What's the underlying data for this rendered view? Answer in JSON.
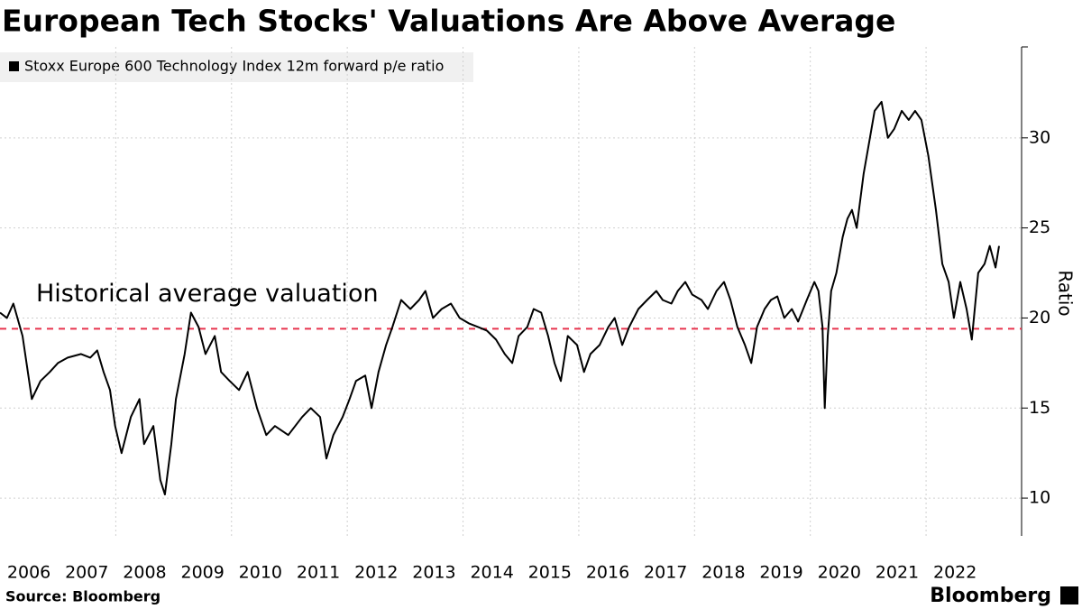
{
  "chart_data": {
    "type": "line",
    "title": "European Tech Stocks' Valuations Are Above Average",
    "y_label": "Ratio",
    "source": "Source: Bloomberg",
    "brand": "Bloomberg",
    "x": [
      2006.0,
      2006.12,
      2006.23,
      2006.39,
      2006.55,
      2006.7,
      2006.86,
      2007.0,
      2007.17,
      2007.4,
      2007.56,
      2007.68,
      2007.79,
      2007.9,
      2007.99,
      2008.1,
      2008.26,
      2008.41,
      2008.49,
      2008.65,
      2008.77,
      2008.85,
      2008.96,
      2009.04,
      2009.19,
      2009.3,
      2009.43,
      2009.55,
      2009.71,
      2009.82,
      2009.97,
      2010.13,
      2010.28,
      2010.44,
      2010.6,
      2010.75,
      2010.98,
      2011.22,
      2011.37,
      2011.53,
      2011.64,
      2011.76,
      2011.92,
      2012.04,
      2012.15,
      2012.31,
      2012.42,
      2012.54,
      2012.67,
      2012.78,
      2012.93,
      2013.09,
      2013.24,
      2013.35,
      2013.48,
      2013.63,
      2013.79,
      2013.94,
      2014.1,
      2014.26,
      2014.41,
      2014.57,
      2014.72,
      2014.85,
      2014.96,
      2015.11,
      2015.22,
      2015.35,
      2015.47,
      2015.58,
      2015.69,
      2015.81,
      2015.97,
      2016.09,
      2016.2,
      2016.36,
      2016.51,
      2016.62,
      2016.75,
      2016.87,
      2017.03,
      2017.18,
      2017.34,
      2017.45,
      2017.6,
      2017.71,
      2017.84,
      2017.96,
      2018.12,
      2018.23,
      2018.38,
      2018.51,
      2018.62,
      2018.74,
      2018.87,
      2018.98,
      2019.08,
      2019.21,
      2019.32,
      2019.43,
      2019.55,
      2019.68,
      2019.79,
      2019.94,
      2020.07,
      2020.14,
      2020.21,
      2020.25,
      2020.3,
      2020.36,
      2020.45,
      2020.56,
      2020.64,
      2020.72,
      2020.8,
      2020.92,
      2021.03,
      2021.11,
      2021.23,
      2021.34,
      2021.45,
      2021.58,
      2021.7,
      2021.81,
      2021.92,
      2022.04,
      2022.17,
      2022.28,
      2022.39,
      2022.48,
      2022.59,
      2022.7,
      2022.79,
      2022.9,
      2023.01,
      2023.1,
      2023.2,
      2023.26
    ],
    "series": [
      {
        "name": "Stoxx Europe 600 Technology Index 12m forward p/e ratio",
        "color": "#000000",
        "values": [
          20.3,
          20.0,
          20.8,
          19.0,
          15.5,
          16.5,
          17.0,
          17.5,
          17.8,
          18.0,
          17.8,
          18.2,
          17.0,
          16.0,
          14.0,
          12.5,
          14.5,
          15.5,
          13.0,
          14.0,
          11.0,
          10.2,
          13.0,
          15.5,
          18.0,
          20.3,
          19.5,
          18.0,
          19.0,
          17.0,
          16.5,
          16.0,
          17.0,
          15.0,
          13.5,
          14.0,
          13.5,
          14.5,
          15.0,
          14.5,
          12.2,
          13.5,
          14.5,
          15.5,
          16.5,
          16.8,
          15.0,
          17.0,
          18.5,
          19.5,
          21.0,
          20.5,
          21.0,
          21.5,
          20.0,
          20.5,
          20.8,
          20.0,
          19.7,
          19.5,
          19.3,
          18.8,
          18.0,
          17.5,
          19.0,
          19.5,
          20.5,
          20.3,
          19.0,
          17.5,
          16.5,
          19.0,
          18.5,
          17.0,
          18.0,
          18.5,
          19.5,
          20.0,
          18.5,
          19.5,
          20.5,
          21.0,
          21.5,
          21.0,
          20.8,
          21.5,
          22.0,
          21.3,
          21.0,
          20.5,
          21.5,
          22.0,
          21.0,
          19.5,
          18.5,
          17.5,
          19.5,
          20.5,
          21.0,
          21.2,
          20.0,
          20.5,
          19.8,
          21.0,
          22.0,
          21.5,
          19.5,
          15.0,
          19.0,
          21.5,
          22.5,
          24.5,
          25.5,
          26.0,
          25.0,
          28.0,
          30.0,
          31.5,
          32.0,
          30.0,
          30.5,
          31.5,
          31.0,
          31.5,
          31.0,
          29.0,
          26.0,
          23.0,
          22.0,
          20.0,
          22.0,
          20.5,
          18.8,
          22.5,
          23.0,
          24.0,
          22.8,
          24.0
        ]
      }
    ],
    "reference_line": {
      "value": 19.4,
      "label": "Historical average valuation",
      "color": "#e8344e"
    },
    "xlim": [
      2006,
      2023.65
    ],
    "xticks": [
      2006,
      2007,
      2008,
      2009,
      2010,
      2011,
      2012,
      2013,
      2014,
      2015,
      2016,
      2017,
      2018,
      2019,
      2020,
      2021,
      2022
    ],
    "ylim": [
      7.9,
      35.05
    ],
    "yticks": [
      10,
      15,
      20,
      25,
      30
    ],
    "grid": true
  }
}
